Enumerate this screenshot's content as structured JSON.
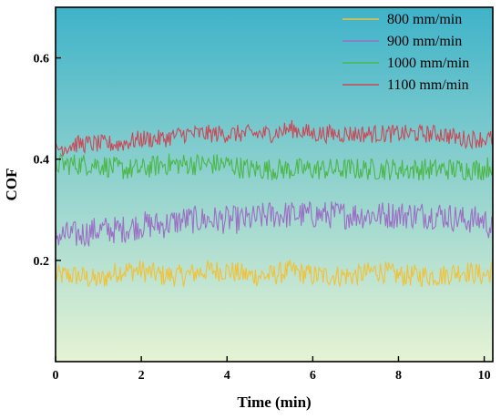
{
  "chart_data": {
    "type": "line",
    "title": "",
    "xlabel": "Time (min)",
    "ylabel": "COF",
    "xlim": [
      0,
      10.2
    ],
    "ylim": [
      0,
      0.7
    ],
    "xticks": [
      0,
      2,
      4,
      6,
      8,
      10
    ],
    "yticks": [
      0.2,
      0.4,
      0.6
    ],
    "xtick_labels": [
      "0",
      "2",
      "4",
      "6",
      "8",
      "10"
    ],
    "ytick_labels": [
      "0.2",
      "0.4",
      "0.6"
    ],
    "grid": false,
    "legend_position": "top-right",
    "background": {
      "gradient_top": "#3fb3c9",
      "gradient_bottom": "#e6f3d4"
    },
    "series": [
      {
        "name": "800 mm/min",
        "color": "#f0c23a",
        "x": [
          0,
          0.5,
          1,
          1.5,
          2,
          2.5,
          3,
          3.5,
          4,
          4.5,
          5,
          5.5,
          6,
          6.5,
          7,
          7.5,
          8,
          8.5,
          9,
          9.5,
          10,
          10.2
        ],
        "y": [
          0.17,
          0.17,
          0.16,
          0.18,
          0.18,
          0.17,
          0.17,
          0.18,
          0.18,
          0.17,
          0.17,
          0.18,
          0.17,
          0.17,
          0.17,
          0.18,
          0.17,
          0.17,
          0.17,
          0.18,
          0.17,
          0.18
        ]
      },
      {
        "name": "900 mm/min",
        "color": "#9b6fc4",
        "x": [
          0,
          0.5,
          1,
          1.5,
          2,
          2.5,
          3,
          3.5,
          4,
          4.5,
          5,
          5.5,
          6,
          6.5,
          7,
          7.5,
          8,
          8.5,
          9,
          9.5,
          10,
          10.2
        ],
        "y": [
          0.25,
          0.25,
          0.26,
          0.26,
          0.27,
          0.27,
          0.28,
          0.28,
          0.28,
          0.28,
          0.29,
          0.29,
          0.29,
          0.29,
          0.29,
          0.29,
          0.29,
          0.29,
          0.29,
          0.28,
          0.28,
          0.26
        ]
      },
      {
        "name": "1000 mm/min",
        "color": "#4cb84a",
        "x": [
          0,
          0.5,
          1,
          1.5,
          2,
          2.5,
          3,
          3.5,
          4,
          4.5,
          5,
          5.5,
          6,
          6.5,
          7,
          7.5,
          8,
          8.5,
          9,
          9.5,
          10,
          10.2
        ],
        "y": [
          0.39,
          0.39,
          0.39,
          0.38,
          0.38,
          0.39,
          0.39,
          0.39,
          0.39,
          0.38,
          0.38,
          0.38,
          0.38,
          0.38,
          0.38,
          0.38,
          0.38,
          0.38,
          0.38,
          0.38,
          0.38,
          0.39
        ]
      },
      {
        "name": "1100 mm/min",
        "color": "#c84a5a",
        "x": [
          0,
          0.5,
          1,
          1.5,
          2,
          2.5,
          3,
          3.5,
          4,
          4.5,
          5,
          5.5,
          6,
          6.5,
          7,
          7.5,
          8,
          8.5,
          9,
          9.5,
          10,
          10.2
        ],
        "y": [
          0.42,
          0.43,
          0.43,
          0.43,
          0.44,
          0.44,
          0.45,
          0.45,
          0.45,
          0.45,
          0.45,
          0.46,
          0.45,
          0.45,
          0.45,
          0.45,
          0.45,
          0.45,
          0.45,
          0.44,
          0.44,
          0.44
        ]
      }
    ]
  }
}
